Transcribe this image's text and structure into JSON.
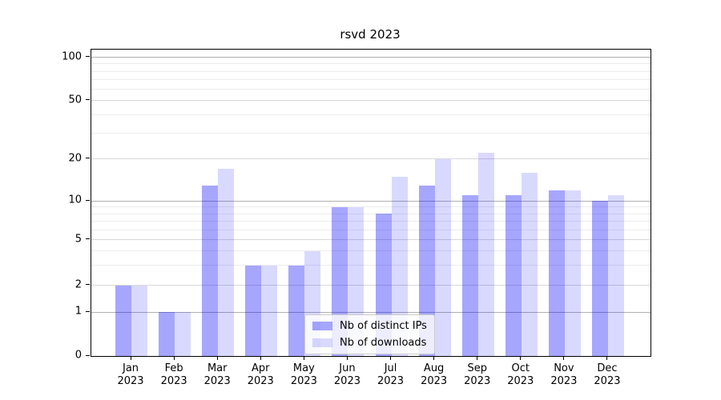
{
  "title": "rsvd 2023",
  "chart_data": {
    "type": "bar",
    "title": "rsvd 2023",
    "categories": [
      {
        "month": "Jan",
        "year": "2023"
      },
      {
        "month": "Feb",
        "year": "2023"
      },
      {
        "month": "Mar",
        "year": "2023"
      },
      {
        "month": "Apr",
        "year": "2023"
      },
      {
        "month": "May",
        "year": "2023"
      },
      {
        "month": "Jun",
        "year": "2023"
      },
      {
        "month": "Jul",
        "year": "2023"
      },
      {
        "month": "Aug",
        "year": "2023"
      },
      {
        "month": "Sep",
        "year": "2023"
      },
      {
        "month": "Oct",
        "year": "2023"
      },
      {
        "month": "Nov",
        "year": "2023"
      },
      {
        "month": "Dec",
        "year": "2023"
      }
    ],
    "series": [
      {
        "name": "Nb of distinct IPs",
        "color": "rgba(0,0,255,0.35)",
        "values": [
          2,
          1,
          13,
          3,
          3,
          9,
          8,
          13,
          11,
          11,
          12,
          10
        ]
      },
      {
        "name": "Nb of downloads",
        "color": "rgba(0,0,255,0.15)",
        "values": [
          2,
          1,
          17,
          3,
          4,
          9,
          15,
          20,
          22,
          16,
          12,
          11
        ]
      }
    ],
    "y_axis": {
      "scale": "log-like (linear 0-1, logarithmic above)",
      "tick_values": [
        100,
        50,
        20,
        10,
        5,
        2,
        1,
        0
      ],
      "tick_labels": [
        "100",
        "50",
        "20",
        "10",
        "5",
        "2",
        "1",
        "0"
      ],
      "major_grid_values": [
        1,
        10,
        100
      ],
      "mid_grid_values": [
        2,
        5,
        20,
        50
      ],
      "minor_grid_values": [
        3,
        4,
        6,
        7,
        8,
        9,
        30,
        40,
        60,
        70,
        80,
        90
      ],
      "ylim": [
        0,
        104
      ]
    },
    "legend": {
      "position": "lower center of plot",
      "entries": [
        "Nb of distinct IPs",
        "Nb of downloads"
      ]
    },
    "colors": {
      "bar_distinct_ips": "rgba(0,0,255,0.35)",
      "bar_downloads": "rgba(0,0,255,0.15)",
      "grid_major": "#b0b0b0",
      "grid_mid": "#d8d8d8",
      "grid_minor": "#ececec",
      "spine": "#000000",
      "background": "#ffffff"
    }
  }
}
